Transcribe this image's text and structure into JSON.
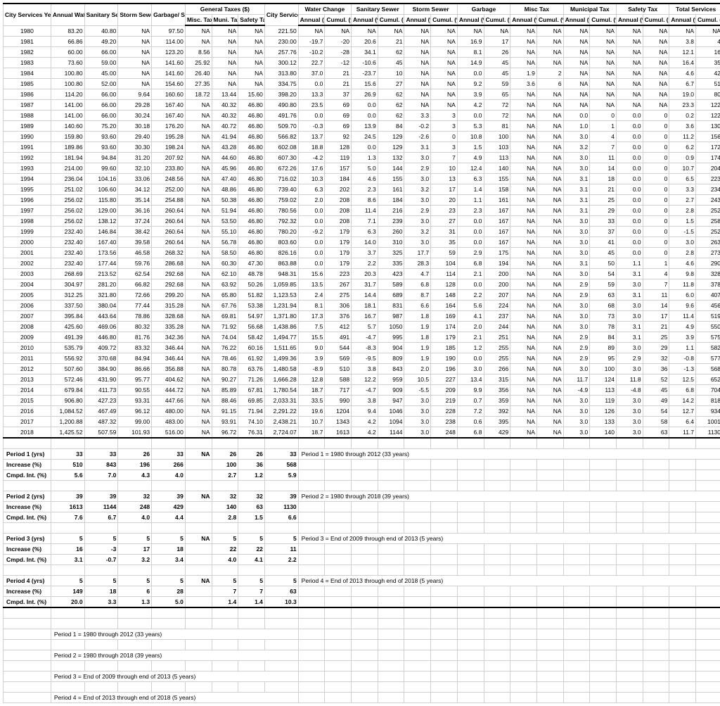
{
  "header": {
    "groups": [
      "City Services Year",
      "Annual Water Cost ($)",
      "Sanitary Sewer Cost ($)",
      "Storm Sewer Cost ($)",
      "Garbage/ Sanitation Cost ($)",
      "General Taxes ($)",
      "City Services Total ($)",
      "Water Change",
      "Sanitary Sewer",
      "Storm Sewer",
      "Garbage",
      "Misc Tax",
      "Municipal Tax",
      "Safety Tax",
      "Total Services"
    ],
    "sub_gen": [
      "Misc. Tax",
      "Muni. Tax",
      "Safety Tax"
    ],
    "sub_pct": [
      "Annual (%)",
      "Cumul. (%)"
    ]
  },
  "rows": [
    [
      "1980",
      "83.20",
      "40.80",
      "NA",
      "97.50",
      "NA",
      "NA",
      "NA",
      "221.50",
      "NA",
      "NA",
      "NA",
      "NA",
      "NA",
      "NA",
      "NA",
      "NA",
      "NA",
      "NA",
      "NA",
      "NA",
      "NA",
      "NA",
      "NA",
      "NA"
    ],
    [
      "1981",
      "66.86",
      "49.20",
      "NA",
      "114.00",
      "NA",
      "NA",
      "NA",
      "230.00",
      "-19.7",
      "-20",
      "20.6",
      "21",
      "NA",
      "NA",
      "16.9",
      "17",
      "NA",
      "NA",
      "NA",
      "NA",
      "NA",
      "NA",
      "3.8",
      "4"
    ],
    [
      "1982",
      "60.00",
      "66.00",
      "NA",
      "123.20",
      "8.56",
      "NA",
      "NA",
      "257.76",
      "-10.2",
      "-28",
      "34.1",
      "62",
      "NA",
      "NA",
      "8.1",
      "26",
      "NA",
      "NA",
      "NA",
      "NA",
      "NA",
      "NA",
      "12.1",
      "16"
    ],
    [
      "1983",
      "73.60",
      "59.00",
      "NA",
      "141.60",
      "25.92",
      "NA",
      "NA",
      "300.12",
      "22.7",
      "-12",
      "-10.6",
      "45",
      "NA",
      "NA",
      "14.9",
      "45",
      "NA",
      "NA",
      "NA",
      "NA",
      "NA",
      "NA",
      "16.4",
      "35"
    ],
    [
      "1984",
      "100.80",
      "45.00",
      "NA",
      "141.60",
      "26.40",
      "NA",
      "NA",
      "313.80",
      "37.0",
      "21",
      "-23.7",
      "10",
      "NA",
      "NA",
      "0.0",
      "45",
      "1.9",
      "2",
      "NA",
      "NA",
      "NA",
      "NA",
      "4.6",
      "42"
    ],
    [
      "1985",
      "100.80",
      "52.00",
      "NA",
      "154.60",
      "27.35",
      "NA",
      "NA",
      "334.75",
      "0.0",
      "21",
      "15.6",
      "27",
      "NA",
      "NA",
      "9.2",
      "59",
      "3.6",
      "6",
      "NA",
      "NA",
      "NA",
      "NA",
      "6.7",
      "51"
    ],
    [
      "1986",
      "114.20",
      "66.00",
      "9.64",
      "160.60",
      "18.72",
      "13.44",
      "15.60",
      "398.20",
      "13.3",
      "37",
      "26.9",
      "62",
      "NA",
      "NA",
      "3.9",
      "65",
      "NA",
      "NA",
      "NA",
      "NA",
      "NA",
      "NA",
      "19.0",
      "80"
    ],
    [
      "1987",
      "141.00",
      "66.00",
      "29.28",
      "167.40",
      "NA",
      "40.32",
      "46.80",
      "490.80",
      "23.5",
      "69",
      "0.0",
      "62",
      "NA",
      "NA",
      "4.2",
      "72",
      "NA",
      "NA",
      "NA",
      "NA",
      "NA",
      "NA",
      "23.3",
      "122"
    ],
    [
      "1988",
      "141.00",
      "66.00",
      "30.24",
      "167.40",
      "NA",
      "40.32",
      "46.80",
      "491.76",
      "0.0",
      "69",
      "0.0",
      "62",
      "3.3",
      "3",
      "0.0",
      "72",
      "NA",
      "NA",
      "0.0",
      "0",
      "0.0",
      "0",
      "0.2",
      "122"
    ],
    [
      "1989",
      "140.60",
      "75.20",
      "30.18",
      "176.20",
      "NA",
      "40.72",
      "46.80",
      "509.70",
      "-0.3",
      "69",
      "13.9",
      "84",
      "-0.2",
      "3",
      "5.3",
      "81",
      "NA",
      "NA",
      "1.0",
      "1",
      "0.0",
      "0",
      "3.6",
      "130"
    ],
    [
      "1990",
      "159.80",
      "93.60",
      "29.40",
      "195.28",
      "NA",
      "41.94",
      "46.80",
      "566.82",
      "13.7",
      "92",
      "24.5",
      "129",
      "-2.6",
      "0",
      "10.8",
      "100",
      "NA",
      "NA",
      "3.0",
      "4",
      "0.0",
      "0",
      "11.2",
      "156"
    ],
    [
      "1991",
      "189.86",
      "93.60",
      "30.30",
      "198.24",
      "NA",
      "43.28",
      "46.80",
      "602.08",
      "18.8",
      "128",
      "0.0",
      "129",
      "3.1",
      "3",
      "1.5",
      "103",
      "NA",
      "NA",
      "3.2",
      "7",
      "0.0",
      "0",
      "6.2",
      "172"
    ],
    [
      "1992",
      "181.94",
      "94.84",
      "31.20",
      "207.92",
      "NA",
      "44.60",
      "46.80",
      "607.30",
      "-4.2",
      "119",
      "1.3",
      "132",
      "3.0",
      "7",
      "4.9",
      "113",
      "NA",
      "NA",
      "3.0",
      "11",
      "0.0",
      "0",
      "0.9",
      "174"
    ],
    [
      "1993",
      "214.00",
      "99.60",
      "32.10",
      "233.80",
      "NA",
      "45.96",
      "46.80",
      "672.26",
      "17.6",
      "157",
      "5.0",
      "144",
      "2.9",
      "10",
      "12.4",
      "140",
      "NA",
      "NA",
      "3.0",
      "14",
      "0.0",
      "0",
      "10.7",
      "204"
    ],
    [
      "1994",
      "236.04",
      "104.16",
      "33.06",
      "248.56",
      "NA",
      "47.40",
      "46.80",
      "716.02",
      "10.3",
      "184",
      "4.6",
      "155",
      "3.0",
      "13",
      "6.3",
      "155",
      "NA",
      "NA",
      "3.1",
      "18",
      "0.0",
      "0",
      "6.5",
      "223"
    ],
    [
      "1995",
      "251.02",
      "106.60",
      "34.12",
      "252.00",
      "NA",
      "48.86",
      "46.80",
      "739.40",
      "6.3",
      "202",
      "2.3",
      "161",
      "3.2",
      "17",
      "1.4",
      "158",
      "NA",
      "NA",
      "3.1",
      "21",
      "0.0",
      "0",
      "3.3",
      "234"
    ],
    [
      "1996",
      "256.02",
      "115.80",
      "35.14",
      "254.88",
      "NA",
      "50.38",
      "46.80",
      "759.02",
      "2.0",
      "208",
      "8.6",
      "184",
      "3.0",
      "20",
      "1.1",
      "161",
      "NA",
      "NA",
      "3.1",
      "25",
      "0.0",
      "0",
      "2.7",
      "243"
    ],
    [
      "1997",
      "256.02",
      "129.00",
      "36.16",
      "260.64",
      "NA",
      "51.94",
      "46.80",
      "780.56",
      "0.0",
      "208",
      "11.4",
      "216",
      "2.9",
      "23",
      "2.3",
      "167",
      "NA",
      "NA",
      "3.1",
      "29",
      "0.0",
      "0",
      "2.8",
      "252"
    ],
    [
      "1998",
      "256.02",
      "138.12",
      "37.24",
      "260.64",
      "NA",
      "53.50",
      "46.80",
      "792.32",
      "0.0",
      "208",
      "7.1",
      "239",
      "3.0",
      "27",
      "0.0",
      "167",
      "NA",
      "NA",
      "3.0",
      "33",
      "0.0",
      "0",
      "1.5",
      "258"
    ],
    [
      "1999",
      "232.40",
      "146.84",
      "38.42",
      "260.64",
      "NA",
      "55.10",
      "46.80",
      "780.20",
      "-9.2",
      "179",
      "6.3",
      "260",
      "3.2",
      "31",
      "0.0",
      "167",
      "NA",
      "NA",
      "3.0",
      "37",
      "0.0",
      "0",
      "-1.5",
      "252"
    ],
    [
      "2000",
      "232.40",
      "167.40",
      "39.58",
      "260.64",
      "NA",
      "56.78",
      "46.80",
      "803.60",
      "0.0",
      "179",
      "14.0",
      "310",
      "3.0",
      "35",
      "0.0",
      "167",
      "NA",
      "NA",
      "3.0",
      "41",
      "0.0",
      "0",
      "3.0",
      "263"
    ],
    [
      "2001",
      "232.40",
      "173.56",
      "46.58",
      "268.32",
      "NA",
      "58.50",
      "46.80",
      "826.16",
      "0.0",
      "179",
      "3.7",
      "325",
      "17.7",
      "59",
      "2.9",
      "175",
      "NA",
      "NA",
      "3.0",
      "45",
      "0.0",
      "0",
      "2.8",
      "273"
    ],
    [
      "2002",
      "232.40",
      "177.44",
      "59.76",
      "286.68",
      "NA",
      "60.30",
      "47.30",
      "863.88",
      "0.0",
      "179",
      "2.2",
      "335",
      "28.3",
      "104",
      "6.8",
      "194",
      "NA",
      "NA",
      "3.1",
      "50",
      "1.1",
      "1",
      "4.6",
      "290"
    ],
    [
      "2003",
      "268.69",
      "213.52",
      "62.54",
      "292.68",
      "NA",
      "62.10",
      "48.78",
      "948.31",
      "15.6",
      "223",
      "20.3",
      "423",
      "4.7",
      "114",
      "2.1",
      "200",
      "NA",
      "NA",
      "3.0",
      "54",
      "3.1",
      "4",
      "9.8",
      "328"
    ],
    [
      "2004",
      "304.97",
      "281.20",
      "66.82",
      "292.68",
      "NA",
      "63.92",
      "50.26",
      "1,059.85",
      "13.5",
      "267",
      "31.7",
      "589",
      "6.8",
      "128",
      "0.0",
      "200",
      "NA",
      "NA",
      "2.9",
      "59",
      "3.0",
      "7",
      "11.8",
      "378"
    ],
    [
      "2005",
      "312.25",
      "321.80",
      "72.66",
      "299.20",
      "NA",
      "65.80",
      "51.82",
      "1,123.53",
      "2.4",
      "275",
      "14.4",
      "689",
      "8.7",
      "148",
      "2.2",
      "207",
      "NA",
      "NA",
      "2.9",
      "63",
      "3.1",
      "11",
      "6.0",
      "407"
    ],
    [
      "2006",
      "337.50",
      "380.04",
      "77.44",
      "315.28",
      "NA",
      "67.76",
      "53.38",
      "1,231.94",
      "8.1",
      "306",
      "18.1",
      "831",
      "6.6",
      "164",
      "5.6",
      "224",
      "NA",
      "NA",
      "3.0",
      "68",
      "3.0",
      "14",
      "9.6",
      "456"
    ],
    [
      "2007",
      "395.84",
      "443.64",
      "78.86",
      "328.68",
      "NA",
      "69.81",
      "54.97",
      "1,371.80",
      "17.3",
      "376",
      "16.7",
      "987",
      "1.8",
      "169",
      "4.1",
      "237",
      "NA",
      "NA",
      "3.0",
      "73",
      "3.0",
      "17",
      "11.4",
      "519"
    ],
    [
      "2008",
      "425.60",
      "469.06",
      "80.32",
      "335.28",
      "NA",
      "71.92",
      "56.68",
      "1,438.86",
      "7.5",
      "412",
      "5.7",
      "1050",
      "1.9",
      "174",
      "2.0",
      "244",
      "NA",
      "NA",
      "3.0",
      "78",
      "3.1",
      "21",
      "4.9",
      "550"
    ],
    [
      "2009",
      "491.39",
      "446.80",
      "81.76",
      "342.36",
      "NA",
      "74.04",
      "58.42",
      "1,494.77",
      "15.5",
      "491",
      "-4.7",
      "995",
      "1.8",
      "179",
      "2.1",
      "251",
      "NA",
      "NA",
      "2.9",
      "84",
      "3.1",
      "25",
      "3.9",
      "575"
    ],
    [
      "2010",
      "535.79",
      "409.72",
      "83.32",
      "346.44",
      "NA",
      "76.22",
      "60.16",
      "1,511.65",
      "9.0",
      "544",
      "-8.3",
      "904",
      "1.9",
      "185",
      "1.2",
      "255",
      "NA",
      "NA",
      "2.9",
      "89",
      "3.0",
      "29",
      "1.1",
      "582"
    ],
    [
      "2011",
      "556.92",
      "370.68",
      "84.94",
      "346.44",
      "NA",
      "78.46",
      "61.92",
      "1,499.36",
      "3.9",
      "569",
      "-9.5",
      "809",
      "1.9",
      "190",
      "0.0",
      "255",
      "NA",
      "NA",
      "2.9",
      "95",
      "2.9",
      "32",
      "-0.8",
      "577"
    ],
    [
      "2012",
      "507.60",
      "384.90",
      "86.66",
      "356.88",
      "NA",
      "80.78",
      "63.76",
      "1,480.58",
      "-8.9",
      "510",
      "3.8",
      "843",
      "2.0",
      "196",
      "3.0",
      "266",
      "NA",
      "NA",
      "3.0",
      "100",
      "3.0",
      "36",
      "-1.3",
      "568"
    ],
    [
      "2013",
      "572.46",
      "431.90",
      "95.77",
      "404.62",
      "NA",
      "90.27",
      "71.26",
      "1,666.28",
      "12.8",
      "588",
      "12.2",
      "959",
      "10.5",
      "227",
      "13.4",
      "315",
      "NA",
      "NA",
      "11.7",
      "124",
      "11.8",
      "52",
      "12.5",
      "652"
    ],
    [
      "2014",
      "679.84",
      "411.73",
      "90.55",
      "444.72",
      "NA",
      "85.89",
      "67.81",
      "1,780.54",
      "18.7",
      "717",
      "-4.7",
      "909",
      "-5.5",
      "209",
      "9.9",
      "356",
      "NA",
      "NA",
      "-4.9",
      "113",
      "-4.8",
      "45",
      "6.8",
      "704"
    ],
    [
      "2015",
      "906.80",
      "427.23",
      "93.31",
      "447.66",
      "NA",
      "88.46",
      "69.85",
      "2,033.31",
      "33.5",
      "990",
      "3.8",
      "947",
      "3.0",
      "219",
      "0.7",
      "359",
      "NA",
      "NA",
      "3.0",
      "119",
      "3.0",
      "49",
      "14.2",
      "818"
    ],
    [
      "2016",
      "1,084.52",
      "467.49",
      "96.12",
      "480.00",
      "NA",
      "91.15",
      "71.94",
      "2,291.22",
      "19.6",
      "1204",
      "9.4",
      "1046",
      "3.0",
      "228",
      "7.2",
      "392",
      "NA",
      "NA",
      "3.0",
      "126",
      "3.0",
      "54",
      "12.7",
      "934"
    ],
    [
      "2017",
      "1,200.88",
      "487.32",
      "99.00",
      "483.00",
      "NA",
      "93.91",
      "74.10",
      "2,438.21",
      "10.7",
      "1343",
      "4.2",
      "1094",
      "3.0",
      "238",
      "0.6",
      "395",
      "NA",
      "NA",
      "3.0",
      "133",
      "3.0",
      "58",
      "6.4",
      "1001"
    ],
    [
      "2018",
      "1,425.52",
      "507.59",
      "101.93",
      "516.00",
      "NA",
      "96.72",
      "76.31",
      "2,724.07",
      "18.7",
      "1613",
      "4.2",
      "1144",
      "3.0",
      "248",
      "6.8",
      "429",
      "NA",
      "NA",
      "3.0",
      "140",
      "3.0",
      "63",
      "11.7",
      "1130"
    ]
  ],
  "periods": [
    {
      "title": "Period 1 (yrs)",
      "vals": [
        "33",
        "33",
        "26",
        "33",
        "NA",
        "26",
        "26",
        "33"
      ],
      "note": "Period 1 = 1980 through 2012 (33 years)",
      "inc": [
        "510",
        "843",
        "196",
        "266",
        "",
        "100",
        "36",
        "568"
      ],
      "cmp": [
        "5.6",
        "7.0",
        "4.3",
        "4.0",
        "",
        "2.7",
        "1.2",
        "5.9"
      ]
    },
    {
      "title": "Period 2 (yrs)",
      "vals": [
        "39",
        "39",
        "32",
        "39",
        "NA",
        "32",
        "32",
        "39"
      ],
      "note": "Period 2 = 1980 through 2018 (39 years)",
      "inc": [
        "1613",
        "1144",
        "248",
        "429",
        "",
        "140",
        "63",
        "1130"
      ],
      "cmp": [
        "7.6",
        "6.7",
        "4.0",
        "4.4",
        "",
        "2.8",
        "1.5",
        "6.6"
      ]
    },
    {
      "title": "Period 3 (yrs)",
      "vals": [
        "5",
        "5",
        "5",
        "5",
        "NA",
        "5",
        "5",
        "5"
      ],
      "note": "Period 3 = End of 2009 through end of 2013 (5 years)",
      "inc": [
        "16",
        "-3",
        "17",
        "18",
        "",
        "22",
        "22",
        "11"
      ],
      "cmp": [
        "3.1",
        "-0.7",
        "3.2",
        "3.4",
        "",
        "4.0",
        "4.1",
        "2.2"
      ]
    },
    {
      "title": "Period 4 (yrs)",
      "vals": [
        "5",
        "5",
        "5",
        "5",
        "NA",
        "5",
        "5",
        "5"
      ],
      "note": "Period 4 = End of 2013 through end of 2018 (5 years)",
      "inc": [
        "149",
        "18",
        "6",
        "28",
        "",
        "7",
        "7",
        "63"
      ],
      "cmp": [
        "20.0",
        "3.3",
        "1.3",
        "5.0",
        "",
        "1.4",
        "1.4",
        "10.3"
      ]
    }
  ],
  "inc_label": "Increase (%)",
  "cmp_label": "Cmpd. Int. (%)",
  "footers": [
    "Period 1 = 1980 through 2012 (33 years)",
    "Period 2 = 1980 through 2018 (39 years)",
    "Period 3 = End of 2009 through end of 2013 (5 years)",
    "Period 4 = End of 2013 through end of 2018 (5 years)"
  ]
}
